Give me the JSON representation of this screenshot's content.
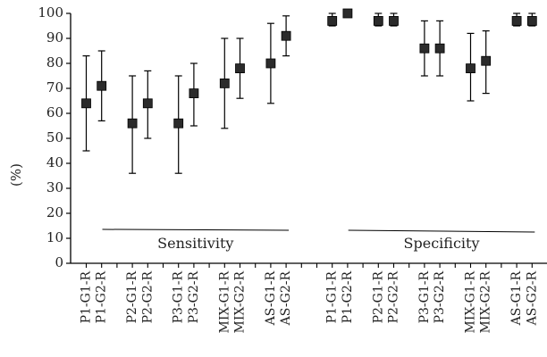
{
  "chart_data": {
    "type": "scatter",
    "ylabel": "(%)",
    "ylim": [
      0,
      100
    ],
    "yticks": [
      0,
      10,
      20,
      30,
      40,
      50,
      60,
      70,
      80,
      90,
      100
    ],
    "grid": false,
    "marker": "square",
    "error_bars": true,
    "groups": [
      {
        "label": "Sensitivity",
        "points": [
          {
            "category": "P1-G1-R",
            "value": 64,
            "low": 45,
            "high": 83
          },
          {
            "category": "P1-G2-R",
            "value": 71,
            "low": 57,
            "high": 85
          },
          {
            "category": "P2-G1-R",
            "value": 56,
            "low": 36,
            "high": 75
          },
          {
            "category": "P2-G2-R",
            "value": 64,
            "low": 50,
            "high": 77
          },
          {
            "category": "P3-G1-R",
            "value": 56,
            "low": 36,
            "high": 75
          },
          {
            "category": "P3-G2-R",
            "value": 68,
            "low": 55,
            "high": 80
          },
          {
            "category": "MIX-G1-R",
            "value": 72,
            "low": 54,
            "high": 90
          },
          {
            "category": "MIX-G2-R",
            "value": 78,
            "low": 66,
            "high": 90
          },
          {
            "category": "AS-G1-R",
            "value": 80,
            "low": 64,
            "high": 96
          },
          {
            "category": "AS-G2-R",
            "value": 91,
            "low": 83,
            "high": 99
          }
        ]
      },
      {
        "label": "Specificity",
        "points": [
          {
            "category": "P1-G1-R",
            "value": 97,
            "low": 95,
            "high": 100
          },
          {
            "category": "P1-G2-R",
            "value": 100,
            "low": 100,
            "high": 100
          },
          {
            "category": "P2-G1-R",
            "value": 97,
            "low": 95,
            "high": 100
          },
          {
            "category": "P2-G2-R",
            "value": 97,
            "low": 95,
            "high": 100
          },
          {
            "category": "P3-G1-R",
            "value": 86,
            "low": 75,
            "high": 97
          },
          {
            "category": "P3-G2-R",
            "value": 86,
            "low": 75,
            "high": 97
          },
          {
            "category": "MIX-G1-R",
            "value": 78,
            "low": 65,
            "high": 92
          },
          {
            "category": "MIX-G2-R",
            "value": 81,
            "low": 68,
            "high": 93
          },
          {
            "category": "AS-G1-R",
            "value": 97,
            "low": 95,
            "high": 100
          },
          {
            "category": "AS-G2-R",
            "value": 97,
            "low": 95,
            "high": 100
          }
        ]
      }
    ]
  }
}
